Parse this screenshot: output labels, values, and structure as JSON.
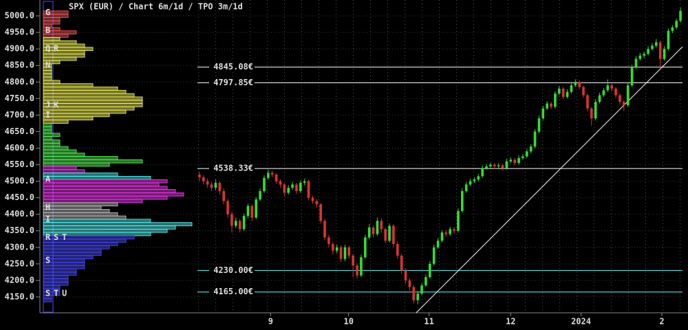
{
  "chart_data": {
    "type": "candlestick",
    "title": "SPX (EUR) /  Chart 6m/1d / TPO 3m/1d",
    "up_color": "#33dd33",
    "down_color": "#dd3333",
    "ylim": [
      4102,
      5048
    ],
    "yticks": [
      {
        "value": 5000,
        "label": "5000.0"
      },
      {
        "value": 4950,
        "label": "4950.0"
      },
      {
        "value": 4900,
        "label": "4900.0"
      },
      {
        "value": 4850,
        "label": "4850.0"
      },
      {
        "value": 4800,
        "label": "4800.0"
      },
      {
        "value": 4750,
        "label": "4750.0"
      },
      {
        "value": 4700,
        "label": "4700.0"
      },
      {
        "value": 4650,
        "label": "4650.0"
      },
      {
        "value": 4600,
        "label": "4600.0"
      },
      {
        "value": 4550,
        "label": "4550.0"
      },
      {
        "value": 4500,
        "label": "4500.0"
      },
      {
        "value": 4450,
        "label": "4450.0"
      },
      {
        "value": 4400,
        "label": "4400.0"
      },
      {
        "value": 4350,
        "label": "4350.0"
      },
      {
        "value": 4300,
        "label": "4300.0"
      },
      {
        "value": 4250,
        "label": "4250.0"
      },
      {
        "value": 4200,
        "label": "4200.0"
      },
      {
        "value": 4150,
        "label": "4150.0"
      }
    ],
    "xlim": [
      -0.5,
      119.5
    ],
    "xticks": [
      {
        "value": 17.6,
        "label": "9"
      },
      {
        "value": 36.9,
        "label": "10"
      },
      {
        "value": 56.8,
        "label": "11"
      },
      {
        "value": 77,
        "label": "12"
      },
      {
        "value": 94.4,
        "label": "2024"
      },
      {
        "value": 114.4,
        "label": "2"
      }
    ],
    "open": [
      4520,
      4512,
      4500,
      4490,
      4480,
      4495,
      4470,
      4440,
      4400,
      4365,
      4380,
      4355,
      4395,
      4425,
      4390,
      4445,
      4470,
      4510,
      4525,
      4520,
      4500,
      4490,
      4465,
      4480,
      4490,
      4470,
      4495,
      4500,
      4450,
      4440,
      4430,
      4380,
      4330,
      4310,
      4290,
      4300,
      4265,
      4300,
      4275,
      4245,
      4215,
      4270,
      4330,
      4360,
      4340,
      4380,
      4355,
      4320,
      4365,
      4310,
      4275,
      4230,
      4200,
      4180,
      4140,
      4160,
      4185,
      4210,
      4250,
      4300,
      4320,
      4345,
      4340,
      4355,
      4350,
      4410,
      4470,
      4490,
      4500,
      4505,
      4515,
      4540,
      4545,
      4550,
      4545,
      4548,
      4540,
      4560,
      4565,
      4555,
      4570,
      4575,
      4590,
      4605,
      4650,
      4690,
      4720,
      4735,
      4725,
      4765,
      4780,
      4755,
      4770,
      4790,
      4800,
      4785,
      4760,
      4720,
      4690,
      4740,
      4760,
      4775,
      4790,
      4780,
      4760,
      4740,
      4730,
      4790,
      4845,
      4870,
      4880,
      4885,
      4900,
      4910,
      4920,
      4870,
      4900,
      4955,
      4965,
      4985
    ],
    "high": [
      4528,
      4518,
      4508,
      4498,
      4505,
      4500,
      4478,
      4446,
      4408,
      4390,
      4385,
      4402,
      4432,
      4430,
      4452,
      4478,
      4518,
      4535,
      4532,
      4524,
      4506,
      4494,
      4488,
      4498,
      4495,
      4502,
      4508,
      4504,
      4456,
      4446,
      4434,
      4386,
      4338,
      4316,
      4308,
      4306,
      4308,
      4305,
      4280,
      4252,
      4278,
      4338,
      4370,
      4366,
      4390,
      4388,
      4360,
      4372,
      4370,
      4318,
      4280,
      4236,
      4206,
      4186,
      4168,
      4192,
      4218,
      4258,
      4308,
      4328,
      4352,
      4352,
      4362,
      4362,
      4418,
      4478,
      4498,
      4508,
      4512,
      4522,
      4548,
      4552,
      4556,
      4555,
      4555,
      4552,
      4568,
      4572,
      4570,
      4578,
      4582,
      4598,
      4612,
      4658,
      4698,
      4728,
      4742,
      4740,
      4772,
      4788,
      4785,
      4778,
      4798,
      4808,
      4805,
      4790,
      4765,
      4725,
      4748,
      4768,
      4782,
      4808,
      4795,
      4785,
      4765,
      4745,
      4798,
      4852,
      4878,
      4888,
      4892,
      4908,
      4918,
      4930,
      4925,
      4908,
      4962,
      4972,
      4992,
      5025
    ],
    "low": [
      4500,
      4490,
      4480,
      4470,
      4472,
      4460,
      4430,
      4390,
      4345,
      4358,
      4345,
      4350,
      4388,
      4380,
      4385,
      4440,
      4465,
      4505,
      4512,
      4492,
      4480,
      4455,
      4460,
      4474,
      4462,
      4465,
      4488,
      4442,
      4432,
      4420,
      4372,
      4322,
      4300,
      4278,
      4282,
      4255,
      4258,
      4265,
      4210,
      4205,
      4210,
      4265,
      4325,
      4330,
      4335,
      4345,
      4312,
      4315,
      4300,
      4265,
      4220,
      4190,
      4170,
      4130,
      4128,
      4155,
      4180,
      4205,
      4245,
      4295,
      4315,
      4332,
      4335,
      4342,
      4345,
      4405,
      4465,
      4485,
      4495,
      4500,
      4510,
      4535,
      4540,
      4538,
      4538,
      4532,
      4535,
      4555,
      4548,
      4550,
      4565,
      4570,
      4585,
      4600,
      4645,
      4685,
      4715,
      4718,
      4720,
      4760,
      4748,
      4750,
      4765,
      4785,
      4778,
      4752,
      4712,
      4668,
      4685,
      4735,
      4755,
      4770,
      4772,
      4752,
      4732,
      4712,
      4725,
      4785,
      4840,
      4865,
      4872,
      4880,
      4895,
      4905,
      4845,
      4865,
      4895,
      4948,
      4960,
      4980
    ],
    "close": [
      4512,
      4500,
      4490,
      4480,
      4495,
      4470,
      4440,
      4400,
      4365,
      4380,
      4355,
      4395,
      4425,
      4390,
      4445,
      4470,
      4510,
      4525,
      4520,
      4500,
      4490,
      4465,
      4480,
      4490,
      4470,
      4495,
      4500,
      4450,
      4440,
      4430,
      4380,
      4330,
      4310,
      4290,
      4300,
      4265,
      4300,
      4275,
      4245,
      4215,
      4270,
      4330,
      4360,
      4340,
      4380,
      4355,
      4320,
      4365,
      4310,
      4275,
      4230,
      4200,
      4180,
      4140,
      4160,
      4185,
      4210,
      4250,
      4300,
      4320,
      4345,
      4340,
      4355,
      4350,
      4410,
      4470,
      4490,
      4500,
      4505,
      4515,
      4540,
      4545,
      4550,
      4545,
      4548,
      4540,
      4560,
      4565,
      4555,
      4570,
      4575,
      4590,
      4605,
      4650,
      4690,
      4720,
      4735,
      4725,
      4765,
      4780,
      4755,
      4770,
      4790,
      4800,
      4785,
      4760,
      4720,
      4690,
      4740,
      4760,
      4775,
      4790,
      4780,
      4760,
      4740,
      4730,
      4790,
      4845,
      4870,
      4880,
      4885,
      4900,
      4910,
      4920,
      4870,
      4900,
      4955,
      4965,
      4985,
      5015
    ],
    "levels": [
      {
        "value": 4845.08,
        "label": "4845.08€",
        "color": "#ffffff"
      },
      {
        "value": 4797.85,
        "label": "4797.85€",
        "color": "#ffffff"
      },
      {
        "value": 4538.33,
        "label": "4538.33€",
        "color": "#ffffff"
      },
      {
        "value": 4230.0,
        "label": "4230.00€",
        "color": "#5affff"
      },
      {
        "value": 4165.0,
        "label": "4165.00€",
        "color": "#5affff"
      }
    ],
    "trendline": {
      "color": "#ffffff",
      "x": [
        53.6,
        119.5
      ],
      "y": [
        4102,
        4906.6
      ]
    },
    "profile": [
      {
        "color": "#ff5a5a",
        "prices": [
          5010,
          5000,
          4990,
          4980,
          4970,
          4960,
          4950,
          4940
        ],
        "counts": [
          3,
          3,
          2,
          2,
          1,
          2,
          4,
          3
        ]
      },
      {
        "color": "#ffff5a",
        "prices": [
          4930,
          4920,
          4910,
          4900,
          4890,
          4880,
          4870,
          4860,
          4850,
          4840,
          4830,
          4820,
          4810,
          4800,
          4790,
          4780,
          4770,
          4760,
          4750,
          4740,
          4730,
          4720,
          4710,
          4700,
          4690,
          4680
        ],
        "counts": [
          2,
          4,
          5,
          6,
          5,
          5,
          4,
          2,
          1,
          1,
          1,
          1,
          1,
          2,
          6,
          9,
          10,
          11,
          12,
          12,
          12,
          11,
          10,
          8,
          6,
          3
        ]
      },
      {
        "color": "#5aff5a",
        "prices": [
          4670,
          4660,
          4650,
          4640,
          4630,
          4620,
          4610,
          4600,
          4590,
          4580,
          4570,
          4560,
          4550
        ],
        "counts": [
          1,
          1,
          1,
          2,
          1,
          2,
          2,
          3,
          4,
          5,
          9,
          12,
          8
        ]
      },
      {
        "color": "#ff3cff",
        "prices": [
          4540,
          4530
        ],
        "counts": [
          4,
          5
        ]
      },
      {
        "color": "#5affff",
        "prices": [
          4520,
          4510
        ],
        "counts": [
          9,
          13
        ]
      },
      {
        "color": "#ff3cff",
        "prices": [
          4500,
          4490,
          4480,
          4470,
          4460,
          4450,
          4440
        ],
        "counts": [
          15,
          14,
          15,
          16,
          17,
          15,
          12
        ]
      },
      {
        "color": "#c8c8c8",
        "prices": [
          4430,
          4420,
          4410,
          4400,
          4390
        ],
        "counts": [
          9,
          7,
          8,
          9,
          10
        ]
      },
      {
        "color": "#5affff",
        "prices": [
          4380,
          4370,
          4360,
          4350,
          4340
        ],
        "counts": [
          13,
          18,
          16,
          15,
          13
        ]
      },
      {
        "color": "#4b4bff",
        "prices": [
          4330,
          4320,
          4310,
          4300,
          4290,
          4280,
          4270,
          4260,
          4250,
          4240,
          4230,
          4220,
          4210,
          4200,
          4190,
          4180,
          4170,
          4160,
          4150,
          4140
        ],
        "counts": [
          11,
          10,
          9,
          8,
          7,
          7,
          6,
          5,
          5,
          5,
          4,
          4,
          3,
          3,
          3,
          2,
          2,
          2,
          1,
          1
        ]
      }
    ],
    "tpo_letters": {
      "labels": [
        "G",
        "B",
        "QR",
        "N",
        "JK",
        "I",
        "A",
        "H",
        "I",
        "RST",
        "S",
        "STU"
      ],
      "prices": [
        5010,
        4955,
        4900,
        4850,
        4730,
        4700,
        4505,
        4420,
        4385,
        4330,
        4260,
        4160
      ]
    }
  }
}
